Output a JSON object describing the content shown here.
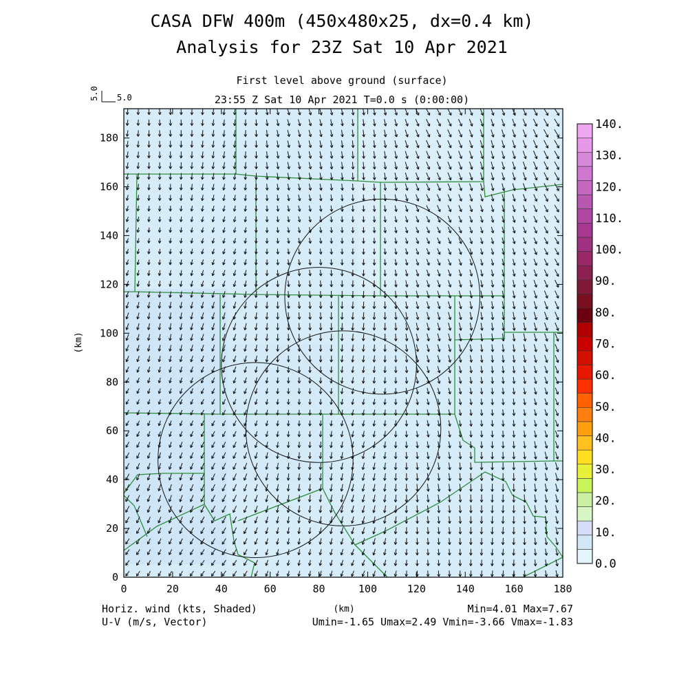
{
  "figure": {
    "title": "CASA DFW 400m (450x480x25, dx=0.4 km)",
    "subtitle": "Analysis for 23Z Sat 10 Apr 2021",
    "level_label": "First level above ground (surface)",
    "time_label": "23:55 Z Sat 10 Apr 2021   T=0.0 s (0:00:00)",
    "ref_vector_label_v": "5.0",
    "ref_vector_label_u": "5.0",
    "footer_left_1": "Horiz. wind (kts, Shaded)",
    "footer_left_2": "U-V (m/s, Vector)",
    "footer_right_1": "Min=4.01 Max=7.67",
    "footer_right_2": "Umin=-1.65 Umax=2.49 Vmin=-3.66 Vmax=-1.83"
  },
  "chart_data": {
    "type": "heatmap",
    "xlabel": "(km)",
    "ylabel": "(km)",
    "xlim": [
      0,
      180
    ],
    "ylim": [
      0,
      192
    ],
    "x_ticks": [
      "0",
      "20",
      "40",
      "60",
      "80",
      "100",
      "120",
      "140",
      "160",
      "180"
    ],
    "y_ticks": [
      "0",
      "20",
      "40",
      "60",
      "80",
      "100",
      "120",
      "140",
      "160",
      "180"
    ],
    "field_stats": {
      "min": 4.01,
      "max": 7.67,
      "umin": -1.65,
      "umax": 2.49,
      "vmin": -3.66,
      "vmax": -1.83
    },
    "radar_coverage_circles_km": [
      {
        "cx": 54,
        "cy": 48,
        "r": 40
      },
      {
        "cx": 80,
        "cy": 87,
        "r": 40
      },
      {
        "cx": 90,
        "cy": 61,
        "r": 40
      },
      {
        "cx": 106,
        "cy": 115,
        "r": 40
      }
    ],
    "colorbar": {
      "tick_labels": [
        "0.0",
        "10.",
        "20.",
        "30.",
        "40.",
        "50.",
        "60.",
        "70.",
        "80.",
        "90.",
        "100.",
        "110.",
        "120.",
        "130.",
        "140."
      ],
      "colors": [
        "#e4f5fc",
        "#d2e8f7",
        "#d6ddf7",
        "#d6f7c4",
        "#c8f0a0",
        "#c9f45a",
        "#e8f03a",
        "#ffe020",
        "#ffc020",
        "#ffa010",
        "#ff8010",
        "#ff6000",
        "#ff3000",
        "#e81800",
        "#d21000",
        "#c80000",
        "#b00000",
        "#6c0010",
        "#781020",
        "#801838",
        "#8c2050",
        "#982868",
        "#a03080",
        "#a83890",
        "#b048a0",
        "#b858b0",
        "#c468c0",
        "#d078d0",
        "#d888d8",
        "#e898e8",
        "#f0a8f0"
      ]
    }
  }
}
